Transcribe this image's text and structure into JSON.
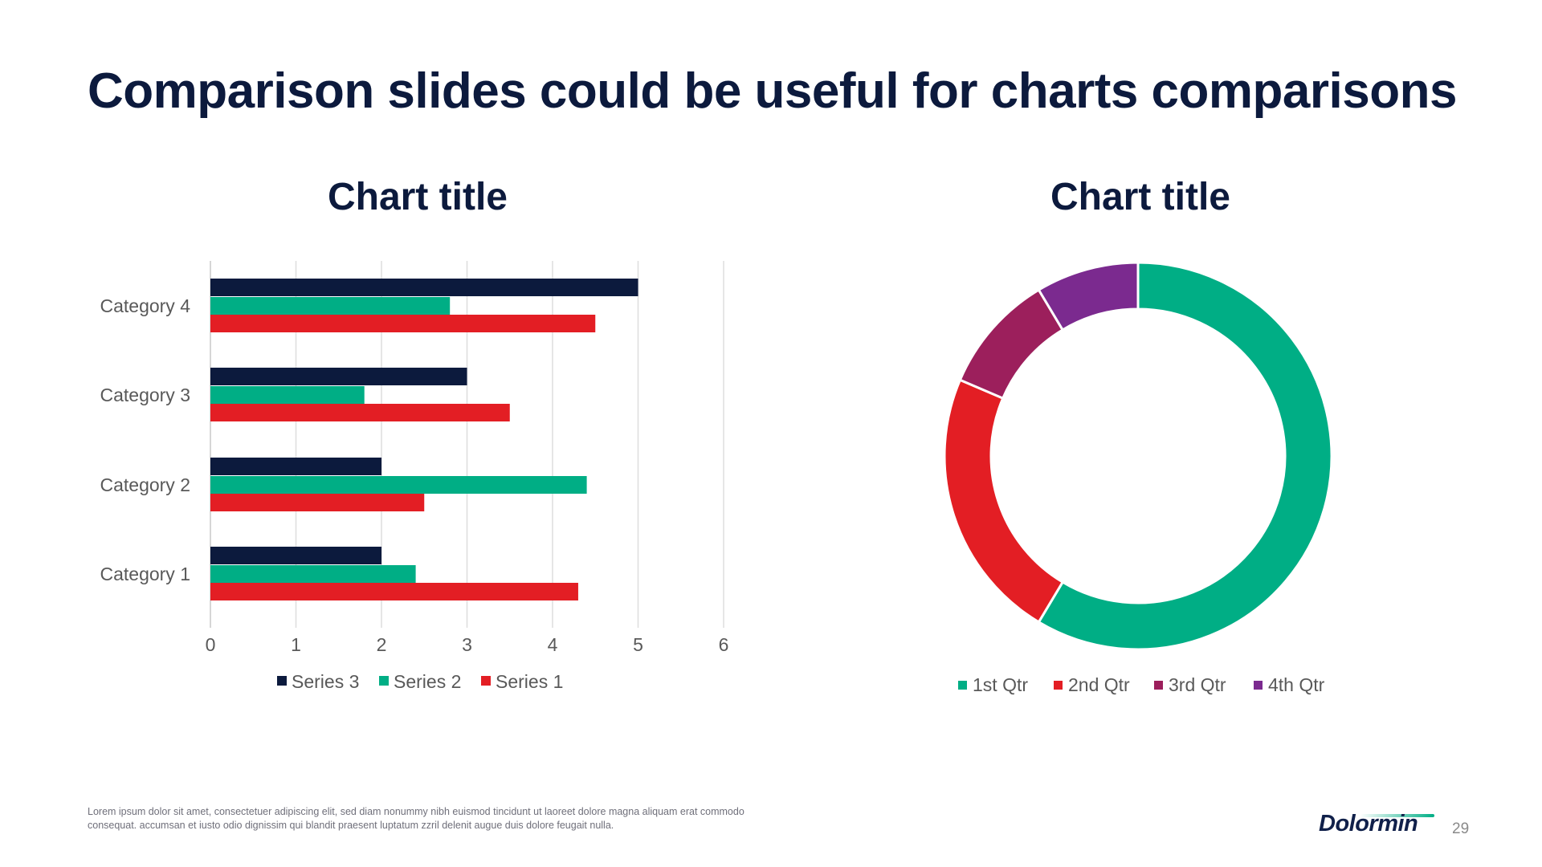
{
  "slide": {
    "title": "Comparison slides could be useful for charts comparisons",
    "footer_text": "Lorem ipsum dolor sit amet, consectetuer adipiscing elit, sed diam nonummy nibh euismod tincidunt ut laoreet dolore magna aliquam erat commodo consequat. accumsan et iusto odio dignissim qui blandit praesent luptatum zzril delenit augue duis dolore feugait nulla.",
    "logo_text": "Dolormin",
    "page_number": "29"
  },
  "chart_data": [
    {
      "type": "bar",
      "orientation": "horizontal",
      "title": "Chart title",
      "categories": [
        "Category 1",
        "Category 2",
        "Category 3",
        "Category 4"
      ],
      "series": [
        {
          "name": "Series 1",
          "values": [
            4.3,
            2.5,
            3.5,
            4.5
          ],
          "color": "#e31e24"
        },
        {
          "name": "Series 2",
          "values": [
            2.4,
            4.4,
            1.8,
            2.8
          ],
          "color": "#00ae85"
        },
        {
          "name": "Series 3",
          "values": [
            2,
            2,
            3,
            5
          ],
          "color": "#0c1a3d"
        }
      ],
      "xlim": [
        0,
        6
      ],
      "xticks": [
        "0",
        "1",
        "2",
        "3",
        "4",
        "5",
        "6"
      ],
      "grid": true,
      "legend": "bottom",
      "legend_order": [
        "Series 3",
        "Series 2",
        "Series 1"
      ]
    },
    {
      "type": "pie",
      "style": "donut",
      "title": "Chart title",
      "labels": [
        "1st Qtr",
        "2nd Qtr",
        "3rd Qtr",
        "4th Qtr"
      ],
      "values": [
        8.2,
        3.2,
        1.4,
        1.2
      ],
      "colors": [
        "#00ae85",
        "#e31e24",
        "#9c1f5c",
        "#7b2a8f"
      ],
      "legend": "bottom"
    }
  ]
}
